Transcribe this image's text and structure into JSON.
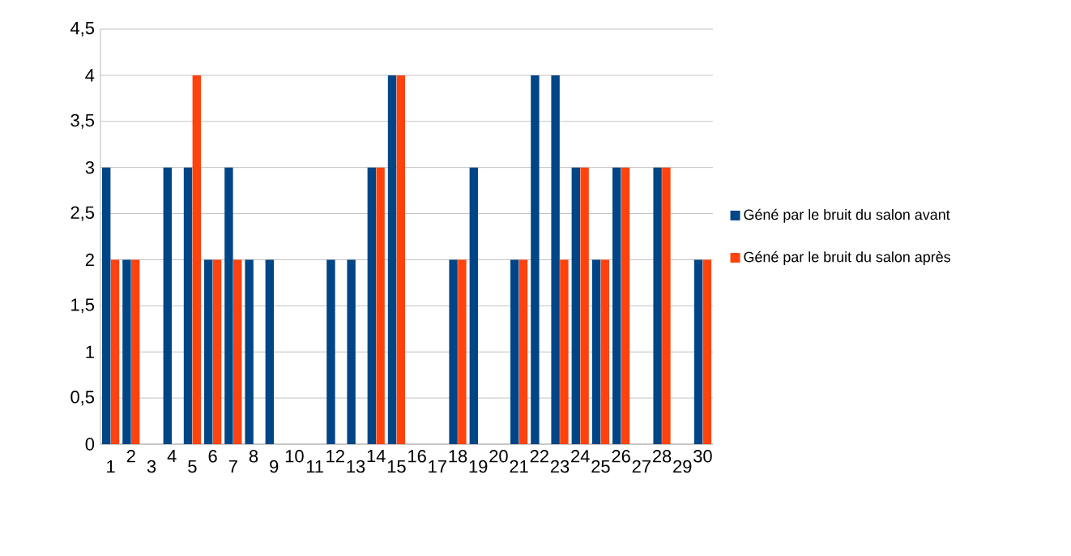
{
  "chart_data": {
    "type": "bar",
    "categories": [
      "1",
      "2",
      "3",
      "4",
      "5",
      "6",
      "7",
      "8",
      "9",
      "10",
      "11",
      "12",
      "13",
      "14",
      "15",
      "16",
      "17",
      "18",
      "19",
      "20",
      "21",
      "22",
      "23",
      "24",
      "25",
      "26",
      "27",
      "28",
      "29",
      "30"
    ],
    "series": [
      {
        "name": "Géné par le bruit du salon avant",
        "color": "#004586",
        "values": [
          3,
          2,
          0,
          3,
          3,
          2,
          3,
          2,
          2,
          0,
          0,
          2,
          2,
          3,
          4,
          0,
          0,
          2,
          3,
          0,
          2,
          4,
          4,
          3,
          2,
          3,
          0,
          3,
          0,
          2
        ]
      },
      {
        "name": "Géné par le bruit du salon après",
        "color": "#ff420e",
        "values": [
          2,
          2,
          0,
          0,
          4,
          2,
          2,
          0,
          0,
          0,
          0,
          0,
          0,
          3,
          4,
          0,
          0,
          2,
          0,
          0,
          2,
          0,
          2,
          3,
          2,
          3,
          0,
          3,
          0,
          2
        ]
      }
    ],
    "ylim": [
      0,
      4.5
    ],
    "yticks": [
      0,
      {
        "value": 0.5,
        "label": "0,5"
      },
      1,
      {
        "value": 1.5,
        "label": "1,5"
      },
      2,
      {
        "value": 2.5,
        "label": "2,5"
      },
      3,
      {
        "value": 3.5,
        "label": "3,5"
      },
      4,
      {
        "value": 4.5,
        "label": "4,5"
      }
    ],
    "grid": "y",
    "legend": "right"
  }
}
